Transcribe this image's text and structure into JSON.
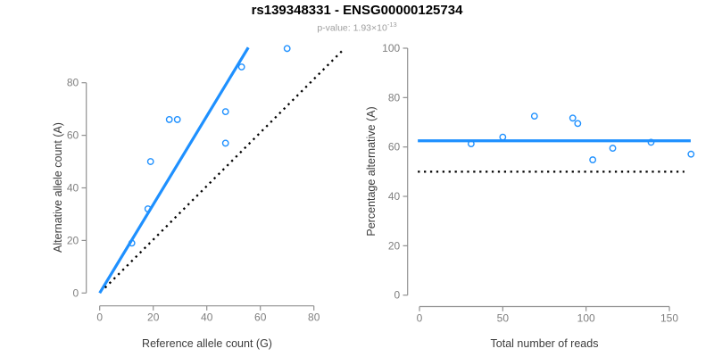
{
  "header": {
    "title": "rs139348331 - ENSG00000125734",
    "subtitle_prefix": "p-value: 1.93×10",
    "subtitle_exponent": "-13"
  },
  "colors": {
    "accent_blue": "#1E90FF",
    "identity_black": "#000000",
    "axis_gray": "#909090",
    "tick_label_gray": "#7f7f7f",
    "axis_title_gray": "#3c3c3c",
    "subtitle_gray": "#9e9e9e",
    "background": "#ffffff"
  },
  "chart_data": [
    {
      "type": "scatter",
      "title": "rs139348331 - ENSG00000125734",
      "xlabel": "Reference allele count (G)",
      "ylabel": "Alternative allele count (A)",
      "x_ticks": [
        0,
        20,
        40,
        60,
        80
      ],
      "y_ticks": [
        0,
        20,
        40,
        60,
        80
      ],
      "x_axis_range": [
        0,
        80
      ],
      "y_axis_range": [
        0,
        80
      ],
      "grid": false,
      "legend": "none",
      "points": [
        [
          12,
          19
        ],
        [
          18,
          32
        ],
        [
          19,
          50
        ],
        [
          26,
          66
        ],
        [
          29,
          66
        ],
        [
          47,
          57
        ],
        [
          47,
          69
        ],
        [
          53,
          86
        ],
        [
          70,
          93
        ]
      ],
      "lines": [
        {
          "name": "fit-line",
          "from": [
            0,
            0
          ],
          "to": [
            55.5,
            93.4
          ],
          "color": "#1E90FF",
          "style": "solid",
          "width": 3.2
        },
        {
          "name": "identity-line",
          "from": [
            2,
            2
          ],
          "to": [
            91,
            92.6
          ],
          "color": "#000000",
          "style": "dotted",
          "width": 2.3
        }
      ]
    },
    {
      "type": "scatter",
      "xlabel": "Total number of reads",
      "ylabel": "Percentage alternative (A)",
      "x_ticks": [
        0,
        50,
        100,
        150
      ],
      "y_ticks": [
        0,
        20,
        40,
        60,
        80,
        100
      ],
      "x_axis_range": [
        0,
        150
      ],
      "y_axis_range": [
        0,
        100
      ],
      "grid": false,
      "legend": "none",
      "points": [
        [
          31,
          61.3
        ],
        [
          50,
          64
        ],
        [
          69,
          72.5
        ],
        [
          92,
          71.7
        ],
        [
          95,
          69.5
        ],
        [
          104,
          54.8
        ],
        [
          116,
          59.5
        ],
        [
          139,
          61.9
        ],
        [
          163,
          57.1
        ]
      ],
      "lines": [
        {
          "name": "mean-percentage-line",
          "from": [
            -1,
            62.5
          ],
          "to": [
            162.8,
            62.5
          ],
          "color": "#1E90FF",
          "style": "solid",
          "width": 3.2
        },
        {
          "name": "fifty-percent-line",
          "from": [
            -1,
            50
          ],
          "to": [
            159,
            50
          ],
          "color": "#000000",
          "style": "dotted",
          "width": 2.3
        }
      ]
    }
  ]
}
